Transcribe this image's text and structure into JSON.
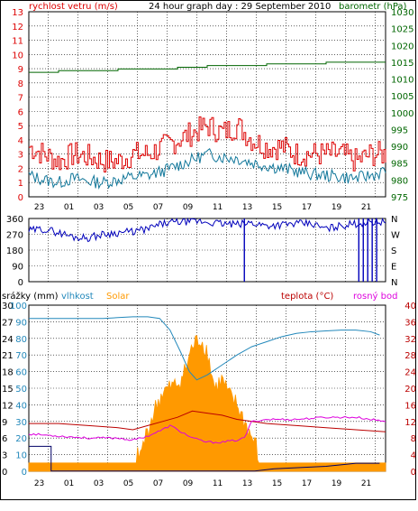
{
  "header": {
    "left_label": "rychlost vetru (m/s)",
    "title": "24 hour graph day : 29 September 2010",
    "right_label": "barometr (hPa)"
  },
  "x_ticks": [
    "23",
    "01",
    "03",
    "05",
    "07",
    "09",
    "11",
    "13",
    "15",
    "17",
    "19",
    "21",
    "23"
  ],
  "colors": {
    "wind_gust": "#dd0000",
    "wind_avg": "#11779a",
    "pressure": "#006600",
    "direction": "#0000bb",
    "humidity": "#2288bb",
    "solar": "#ff9900",
    "rain": "#000066",
    "temperature": "#bb0000",
    "dewpoint": "#dd00dd",
    "grid": "#000000"
  },
  "chart_data": [
    {
      "type": "line",
      "name": "wind-and-pressure",
      "ylabel_left": "rychlost vetru (m/s)",
      "ylabel_right": "barometr (hPa)",
      "ylim_left": [
        0,
        13
      ],
      "ylim_right": [
        975,
        1030
      ],
      "yticks_left": [
        "0",
        "1",
        "2",
        "3",
        "4",
        "5",
        "6",
        "7",
        "8",
        "9",
        "10",
        "11",
        "12",
        "13"
      ],
      "yticks_right": [
        "975",
        "980",
        "985",
        "990",
        "995",
        "1000",
        "1005",
        "1010",
        "1015",
        "1020",
        "1025",
        "1030"
      ],
      "series": [
        {
          "name": "rychlost vetru (m/s)",
          "axis": "left",
          "x": [
            0,
            1,
            2,
            3,
            4,
            5,
            6,
            7,
            8,
            9,
            10,
            11,
            12,
            13,
            14,
            15,
            16,
            17,
            18,
            19,
            20,
            21,
            22,
            23,
            24
          ],
          "values": [
            3.5,
            3,
            2.5,
            3,
            2.8,
            2.5,
            2.5,
            3,
            3,
            3.5,
            4,
            4.5,
            5,
            4.5,
            5,
            4,
            3.5,
            3.5,
            3,
            3,
            3,
            3,
            2.5,
            3,
            3
          ]
        },
        {
          "name": "",
          "axis": "left",
          "x": [
            0,
            1,
            2,
            3,
            4,
            5,
            6,
            7,
            8,
            9,
            10,
            11,
            12,
            13,
            14,
            15,
            16,
            17,
            18,
            19,
            20,
            21,
            22,
            23,
            24
          ],
          "values": [
            1.5,
            1.2,
            1,
            1.3,
            1.1,
            1,
            1.2,
            1.4,
            1.5,
            1.8,
            2.2,
            2.6,
            3,
            2.8,
            2.7,
            2.4,
            2.2,
            2,
            1.8,
            1.6,
            1.5,
            1.4,
            1.3,
            1.5,
            1.8
          ]
        },
        {
          "name": "barometr (hPa)",
          "axis": "right",
          "x": [
            0,
            2,
            4,
            6,
            8,
            10,
            12,
            14,
            16,
            18,
            20,
            22,
            24
          ],
          "values": [
            1012,
            1012.5,
            1012.5,
            1013,
            1013,
            1013.5,
            1014,
            1014,
            1014.5,
            1014.5,
            1015,
            1015,
            1015
          ]
        }
      ]
    },
    {
      "type": "line",
      "name": "wind-direction",
      "ylim": [
        0,
        360
      ],
      "yticks_left": [
        "0",
        "90",
        "180",
        "270",
        "360"
      ],
      "yticks_right": [
        "N",
        "E",
        "S",
        "W",
        "N"
      ],
      "series": [
        {
          "name": "",
          "x": [
            0,
            1,
            2,
            3,
            4,
            5,
            6,
            7,
            8,
            9,
            10,
            11,
            12,
            13,
            14,
            15,
            16,
            17,
            18,
            19,
            20,
            21,
            22,
            23,
            24
          ],
          "values": [
            290,
            300,
            280,
            255,
            250,
            270,
            280,
            285,
            300,
            330,
            340,
            345,
            340,
            330,
            325,
            335,
            320,
            325,
            330,
            330,
            300,
            320,
            330,
            340,
            345
          ]
        }
      ]
    },
    {
      "type": "line",
      "name": "rain-humidity-solar-temperature",
      "ylabel_rain": "srážky (mm)",
      "ylabel_humidity": "vlhkost",
      "ylabel_solar": "Solar",
      "ylabel_temp": "teplota (°C)",
      "ylabel_dew": "rosný bod",
      "yticks_solar": [
        "0",
        "200",
        "400",
        "600",
        "800",
        "1000",
        "1200",
        "1400",
        "1600",
        "1800",
        "2000"
      ],
      "yticks_rain": [
        "0",
        "3",
        "6",
        "9",
        "12",
        "15",
        "18",
        "21",
        "24",
        "27",
        "30"
      ],
      "yticks_humidity": [
        "0",
        "10",
        "20",
        "30",
        "40",
        "50",
        "60",
        "70",
        "80",
        "90",
        "100"
      ],
      "yticks_temp": [
        "0",
        "4",
        "8",
        "12",
        "16",
        "20",
        "24",
        "28",
        "32",
        "36",
        "40"
      ],
      "ylim_temp": [
        0,
        40
      ],
      "ylim_humidity": [
        0,
        100
      ],
      "ylim_solar": [
        0,
        2000
      ],
      "ylim_rain": [
        0,
        30
      ],
      "series": [
        {
          "name": "vlhkost",
          "x": [
            0,
            1,
            2,
            3,
            4,
            5,
            6,
            7,
            8,
            8.8,
            9.5,
            10.2,
            10.8,
            11.3,
            12,
            13,
            14,
            15,
            16,
            17,
            18,
            19,
            20,
            21,
            22,
            23,
            23.6
          ],
          "values": [
            92,
            92,
            92,
            92,
            92,
            92,
            92.5,
            93,
            93,
            92,
            85,
            72,
            60,
            55,
            58,
            64,
            70,
            75,
            78,
            81,
            83,
            84,
            84.5,
            85,
            85,
            84,
            82
          ]
        },
        {
          "name": "teplota (°C)",
          "x": [
            0,
            2,
            4,
            6,
            7,
            8,
            9,
            10,
            11,
            12,
            13,
            14,
            15,
            16,
            18,
            20,
            22,
            24
          ],
          "values": [
            11.5,
            11.5,
            11,
            10.5,
            10,
            11,
            12,
            13,
            14.5,
            14,
            13.5,
            12.5,
            12,
            11.5,
            11,
            10.5,
            10,
            9.5
          ]
        },
        {
          "name": "rosný bod",
          "x": [
            0,
            2,
            4,
            6,
            7,
            8,
            9,
            9.5,
            10,
            10.5,
            11,
            11.5,
            12,
            13,
            14,
            14.5,
            15,
            16,
            18,
            20,
            22,
            24
          ],
          "values": [
            9,
            8.5,
            8,
            8,
            7.5,
            8.5,
            10,
            11,
            10,
            9,
            8,
            7.5,
            7,
            7,
            7.5,
            8,
            12,
            12.5,
            12.5,
            13,
            13,
            12
          ]
        },
        {
          "name": "Solar",
          "x": [
            0,
            6.5,
            7,
            7.5,
            8,
            8.5,
            9,
            9.5,
            10,
            10.5,
            11,
            11.5,
            12,
            12.5,
            13,
            13.5,
            14,
            14.5,
            15,
            15.3,
            15.5,
            24
          ],
          "values": [
            100,
            100,
            120,
            200,
            500,
            750,
            950,
            1000,
            1050,
            1200,
            1500,
            1600,
            1450,
            1000,
            1100,
            900,
            800,
            600,
            400,
            300,
            100,
            100
          ]
        },
        {
          "name": "srážky (mm)",
          "x": [
            0,
            1.5,
            1.5,
            12,
            15.5,
            17,
            20,
            22,
            24
          ],
          "values": [
            0,
            0,
            0,
            0,
            0,
            0.3,
            0.5,
            1,
            1.2
          ]
        }
      ]
    }
  ]
}
